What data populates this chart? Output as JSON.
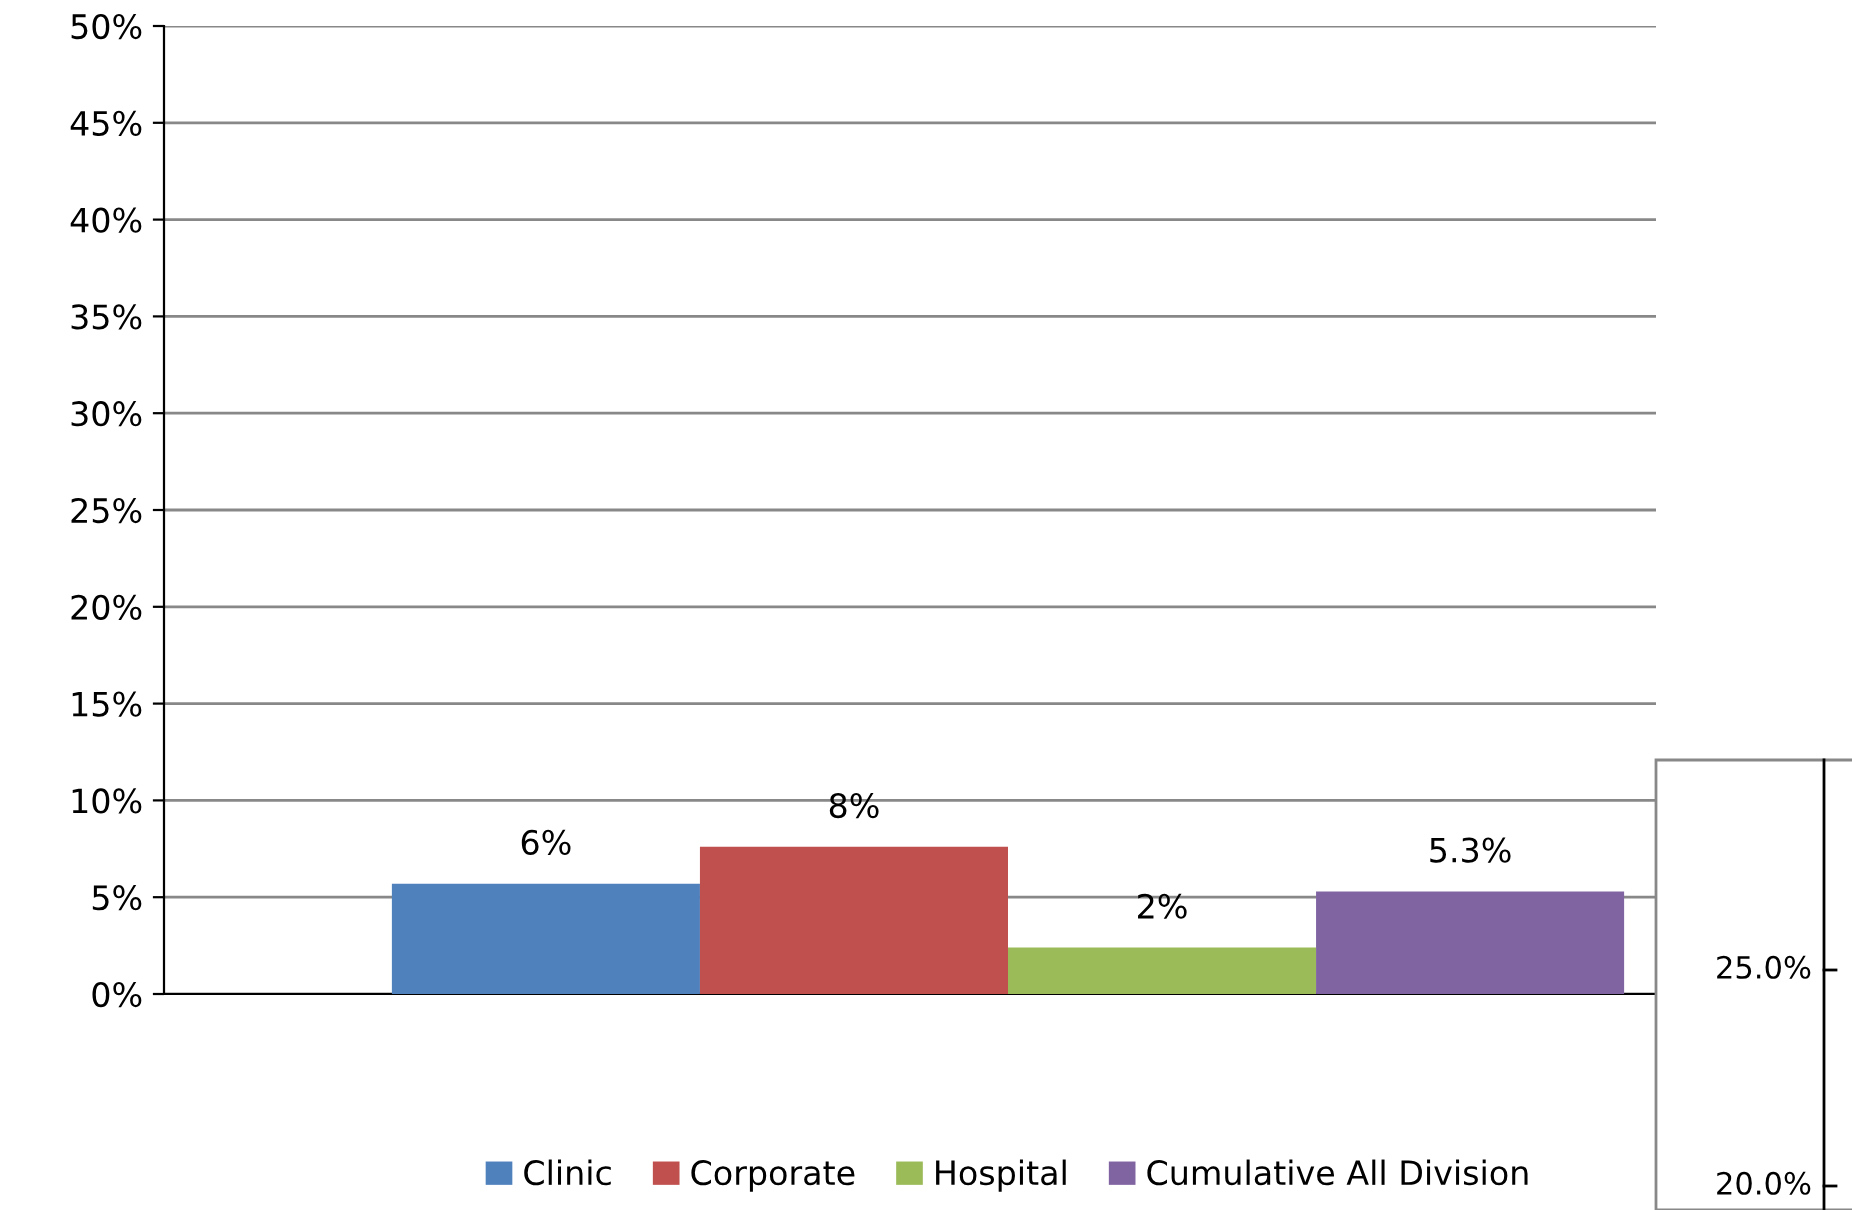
{
  "chart_data": [
    {
      "type": "bar",
      "categories": [
        null
      ],
      "series": [
        {
          "name": "Clinic",
          "color": "#4f81bd",
          "values": [
            5.7
          ],
          "value_labels": [
            "6%"
          ]
        },
        {
          "name": "Corporate",
          "color": "#c0504d",
          "values": [
            7.6
          ],
          "value_labels": [
            "8%"
          ]
        },
        {
          "name": "Hospital",
          "color": "#9bbb59",
          "values": [
            2.4
          ],
          "value_labels": [
            "2%"
          ]
        },
        {
          "name": "Cumulative All Division",
          "color": "#8064a2",
          "values": [
            5.3
          ],
          "value_labels": [
            "5.3%"
          ]
        }
      ],
      "ylim": [
        0,
        50
      ],
      "yticks": [
        {
          "value": 0,
          "label": "0%"
        },
        {
          "value": 5,
          "label": "5%"
        },
        {
          "value": 10,
          "label": "10%"
        },
        {
          "value": 15,
          "label": "15%"
        },
        {
          "value": 20,
          "label": "20%"
        },
        {
          "value": 25,
          "label": "25%"
        },
        {
          "value": 30,
          "label": "30%"
        },
        {
          "value": 35,
          "label": "35%"
        },
        {
          "value": 40,
          "label": "40%"
        },
        {
          "value": 45,
          "label": "45%"
        },
        {
          "value": 50,
          "label": "50%"
        }
      ],
      "grid": "y",
      "legend": "bottom"
    },
    {
      "type": "other",
      "annotations": [
        "25.0%",
        "20.0%"
      ]
    }
  ]
}
